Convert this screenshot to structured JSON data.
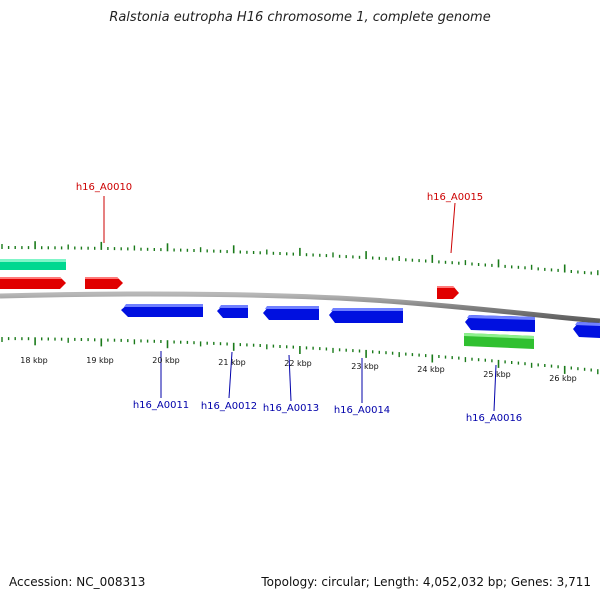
{
  "title": "Ralstonia eutropha H16 chromosome 1, complete genome",
  "footer": {
    "accession": "Accession: NC_008313",
    "summary": "Topology: circular; Length: 4,052,032 bp; Genes: 3,711"
  },
  "colors": {
    "backbone": "#808080",
    "tick": "#1a7a1a",
    "forward_gene": "#e00000",
    "reverse_gene": "#0010e0",
    "rna": "#00d890",
    "green_feature": "#30c030",
    "label_forward": "#cc0000",
    "label_reverse": "#0000aa"
  },
  "scale_labels": [
    "18 kbp",
    "19 kbp",
    "20 kbp",
    "21 kbp",
    "22 kbp",
    "23 kbp",
    "24 kbp",
    "25 kbp",
    "26 kbp"
  ],
  "gene_labels_forward": [
    "h16_A0010",
    "h16_A0015"
  ],
  "gene_labels_reverse": [
    "h16_A0011",
    "h16_A0012",
    "h16_A0013",
    "h16_A0014",
    "h16_A0016"
  ]
}
